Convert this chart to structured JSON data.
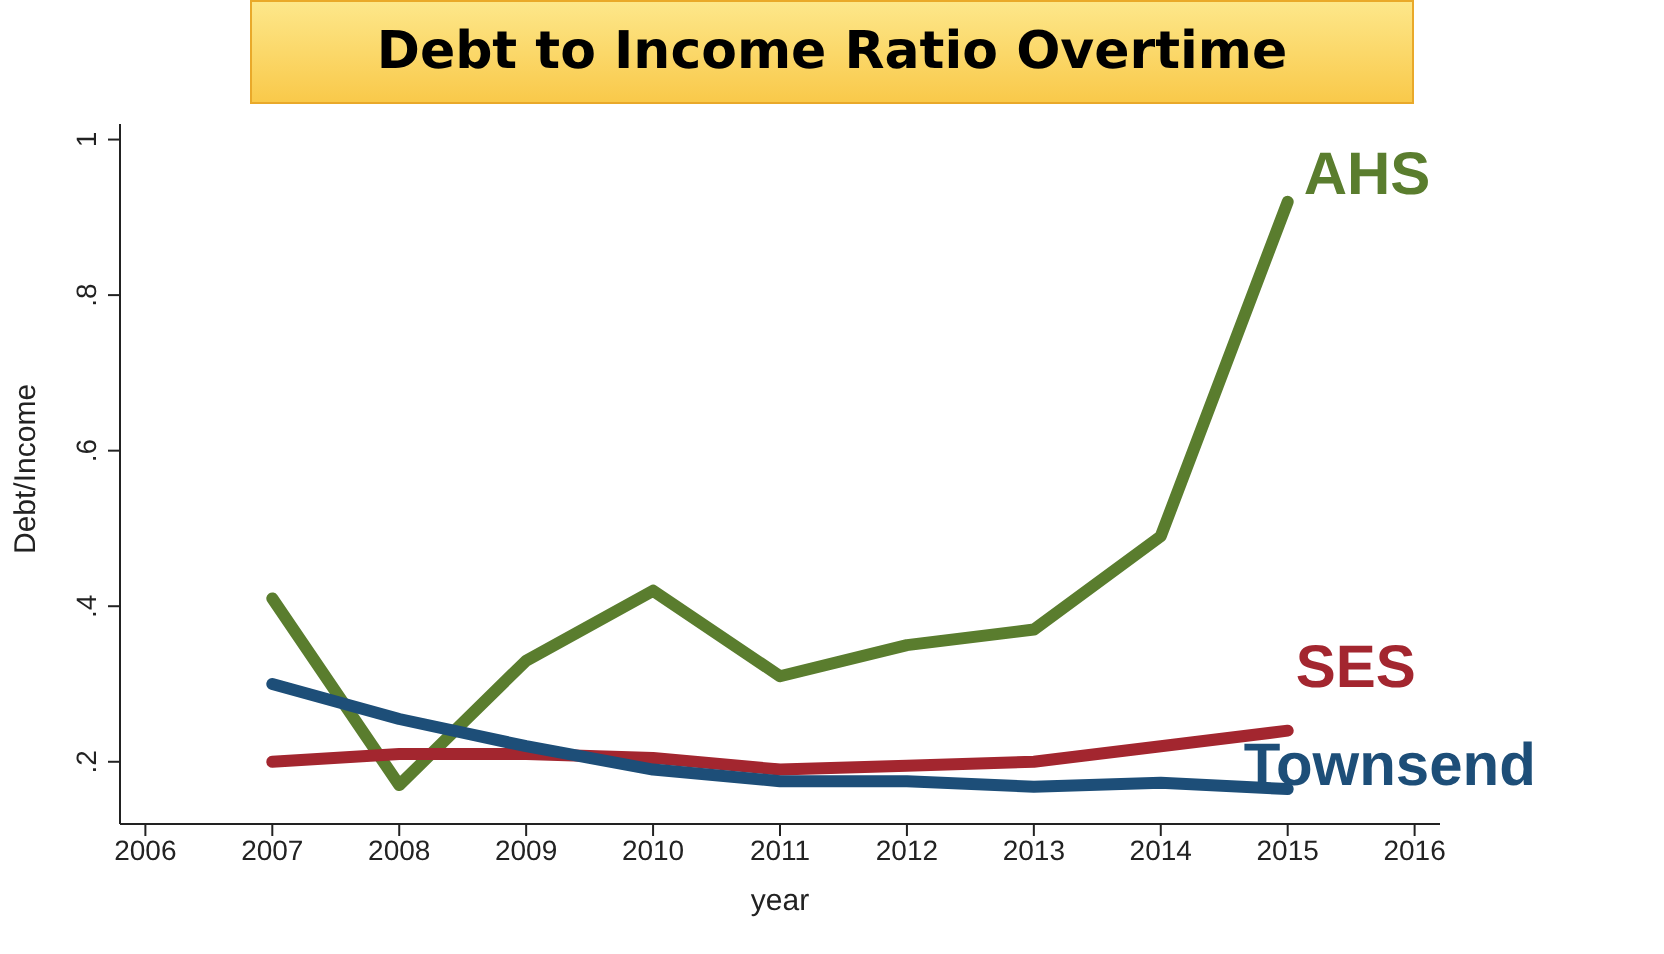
{
  "chart_data": {
    "type": "line",
    "title": "Debt to Income Ratio Overtime",
    "xlabel": "year",
    "ylabel": "Debt/Income",
    "x": [
      2007,
      2008,
      2009,
      2010,
      2011,
      2012,
      2013,
      2014,
      2015
    ],
    "series": [
      {
        "name": "AHS",
        "color": "#5a7d2e",
        "values": [
          0.41,
          0.17,
          0.33,
          0.42,
          0.31,
          0.35,
          0.37,
          0.49,
          0.92
        ]
      },
      {
        "name": "SES",
        "color": "#a3262f",
        "values": [
          0.2,
          0.21,
          0.21,
          0.205,
          0.19,
          0.195,
          0.2,
          0.22,
          0.24
        ]
      },
      {
        "name": "Townsend",
        "color": "#1d4e78",
        "values": [
          0.3,
          0.255,
          0.22,
          0.19,
          0.175,
          0.175,
          0.168,
          0.173,
          0.165
        ]
      }
    ],
    "xlim": [
      2005.8,
      2016.2
    ],
    "xticks": [
      2006,
      2007,
      2008,
      2009,
      2010,
      2011,
      2012,
      2013,
      2014,
      2015,
      2016
    ],
    "ylim": [
      0.12,
      1.02
    ],
    "yticks": [
      {
        "value": 0.2,
        "label": ".2"
      },
      {
        "value": 0.4,
        "label": ".4"
      },
      {
        "value": 0.6,
        "label": ".6"
      },
      {
        "value": 0.8,
        "label": ".8"
      },
      {
        "value": 1,
        "label": "1"
      }
    ],
    "grid": false,
    "legend": false,
    "marker": "none",
    "line_style": "solid"
  }
}
